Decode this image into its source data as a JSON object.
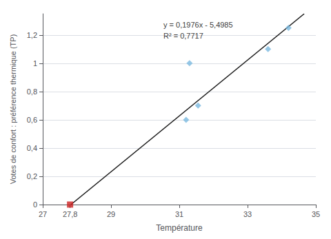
{
  "chart_data": {
    "type": "scatter",
    "xlabel": "Température",
    "ylabel": "Votes de confort : préférence thermique (TP)",
    "xlim": [
      27,
      35
    ],
    "ylim": [
      0,
      1.35
    ],
    "xticks": [
      27,
      {
        "value": 27.8,
        "label": "27,8"
      },
      29,
      31,
      33,
      35
    ],
    "yticks": [
      0,
      {
        "value": 0.2,
        "label": "0,2"
      },
      {
        "value": 0.4,
        "label": "0,4"
      },
      {
        "value": 0.6,
        "label": "0,6"
      },
      {
        "value": 0.8,
        "label": "0,8"
      },
      {
        "value": 1.0,
        "label": "1"
      },
      {
        "value": 1.2,
        "label": "1,2"
      }
    ],
    "grid": "y",
    "series": [
      {
        "type": "line",
        "color": "#1a1a1a",
        "line_style": "solid",
        "x": [
          27.826417,
          34.658401
        ],
        "values": [
          0.0,
          1.35
        ]
      },
      {
        "type": "scatter",
        "color": "#7ab9e0",
        "marker": "diamond",
        "x": [
          31.2,
          31.3,
          31.55,
          33.6,
          34.2
        ],
        "values": [
          0.6,
          1.0,
          0.7,
          1.1,
          1.25
        ]
      },
      {
        "type": "scatter",
        "color": "#cc2222",
        "marker": "square",
        "x": [
          27.8
        ],
        "values": [
          0.0
        ]
      }
    ],
    "annotations": [
      "y = 0,1976x - 5,4985",
      "R² = 0,7717"
    ]
  }
}
